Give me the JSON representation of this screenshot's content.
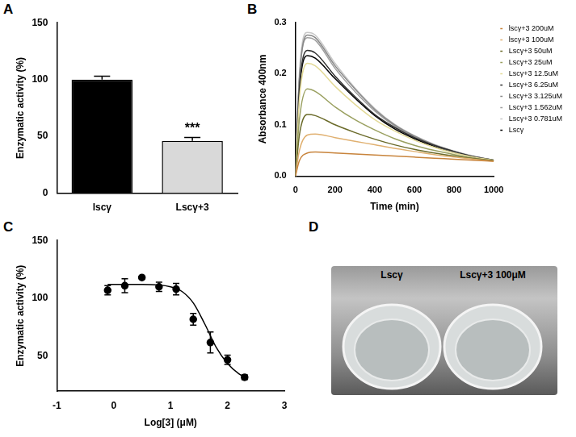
{
  "chart_data": [
    {
      "panel": "A",
      "type": "bar",
      "categories": [
        "lscγ",
        "Lscγ+3"
      ],
      "values": [
        100,
        46
      ],
      "errors": [
        3,
        3
      ],
      "colors": [
        "#000000",
        "#d9d9d9"
      ],
      "ylabel": "Enzymatic activity (%)",
      "ylim": [
        0,
        150
      ],
      "yticks": [
        0,
        50,
        100,
        150
      ],
      "grid": false,
      "annotations": [
        {
          "text": "***",
          "category": "Lscγ+3"
        }
      ]
    },
    {
      "panel": "B",
      "type": "line",
      "xlabel": "Time (min)",
      "ylabel": "Absorbance 400nm",
      "x": [
        0,
        20,
        60,
        100,
        200,
        300,
        400,
        500,
        600,
        700,
        800,
        900,
        1000
      ],
      "xlim": [
        0,
        1000
      ],
      "xticks": [
        0,
        200,
        400,
        600,
        800,
        1000
      ],
      "ylim": [
        0,
        0.3
      ],
      "yticks": [
        {
          "value": 0,
          "label": "0.0"
        },
        {
          "value": 0.1,
          "label": "0.1"
        },
        {
          "value": 0.2,
          "label": "0.2"
        },
        {
          "value": 0.3,
          "label": "0.3"
        }
      ],
      "grid": false,
      "legend": "right",
      "series": [
        {
          "name": "lscγ+3 200uM",
          "color": "#c8843c",
          "values": [
            0,
            0.03,
            0.045,
            0.047,
            0.045,
            0.043,
            0.041,
            0.039,
            0.037,
            0.035,
            0.033,
            0.031,
            0.029
          ]
        },
        {
          "name": "lscγ+3 100uM",
          "color": "#e0b070",
          "values": [
            0,
            0.05,
            0.08,
            0.082,
            0.075,
            0.068,
            0.061,
            0.054,
            0.048,
            0.042,
            0.037,
            0.033,
            0.029
          ]
        },
        {
          "name": "Lscγ+3 50uM",
          "color": "#6b6b2a",
          "values": [
            0,
            0.08,
            0.12,
            0.118,
            0.1,
            0.085,
            0.072,
            0.061,
            0.052,
            0.045,
            0.039,
            0.034,
            0.03
          ]
        },
        {
          "name": "Lscγ+3 25uM",
          "color": "#9aa060",
          "values": [
            0,
            0.11,
            0.17,
            0.165,
            0.135,
            0.11,
            0.09,
            0.073,
            0.06,
            0.05,
            0.042,
            0.035,
            0.03
          ]
        },
        {
          "name": "Lscγ+3 12.5uM",
          "color": "#e3da98",
          "values": [
            0,
            0.15,
            0.22,
            0.215,
            0.175,
            0.14,
            0.11,
            0.088,
            0.07,
            0.056,
            0.045,
            0.037,
            0.031
          ]
        },
        {
          "name": "Lscγ+3 6.25uM",
          "color": "#303030",
          "values": [
            0,
            0.17,
            0.245,
            0.24,
            0.195,
            0.155,
            0.12,
            0.095,
            0.075,
            0.06,
            0.048,
            0.038,
            0.031
          ]
        },
        {
          "name": "Lscγ+3 3.125uM",
          "color": "#888888",
          "values": [
            0,
            0.19,
            0.275,
            0.27,
            0.215,
            0.17,
            0.13,
            0.1,
            0.078,
            0.061,
            0.048,
            0.038,
            0.031
          ]
        },
        {
          "name": "Lscγ+3 1.562uM",
          "color": "#a0a0a0",
          "values": [
            0,
            0.19,
            0.27,
            0.265,
            0.21,
            0.165,
            0.127,
            0.098,
            0.077,
            0.06,
            0.047,
            0.038,
            0.031
          ]
        },
        {
          "name": "Lscγ+3 0.781uM",
          "color": "#c8c8c8",
          "values": [
            0,
            0.2,
            0.28,
            0.275,
            0.22,
            0.172,
            0.132,
            0.101,
            0.079,
            0.062,
            0.049,
            0.039,
            0.031
          ]
        },
        {
          "name": "Lscγ",
          "color": "#000000",
          "values": [
            0,
            0.165,
            0.235,
            0.23,
            0.19,
            0.152,
            0.118,
            0.092,
            0.073,
            0.058,
            0.046,
            0.037,
            0.03
          ]
        }
      ]
    },
    {
      "panel": "C",
      "type": "scatter",
      "xlabel": "Log[3] (μM)",
      "ylabel": "Enzymatic activity (%)",
      "xlim": [
        -1,
        3
      ],
      "xticks": [
        -1,
        0,
        1,
        2,
        3
      ],
      "ylim": [
        20,
        150
      ],
      "yticks": [
        50,
        100,
        150
      ],
      "grid": false,
      "series": [
        {
          "type": "scatter",
          "color": "#000000",
          "x": [
            -0.107,
            0.194,
            0.495,
            0.796,
            1.097,
            1.398,
            1.699,
            2.0,
            2.301
          ],
          "values": [
            107,
            111,
            118,
            110,
            108,
            82,
            62,
            47,
            32
          ],
          "errors": [
            4,
            6,
            1,
            4,
            5,
            5,
            9,
            4,
            2
          ]
        },
        {
          "type": "line",
          "color": "#000000",
          "x": [
            -0.107,
            0.5,
            1.0,
            1.2,
            1.4,
            1.6,
            1.8,
            2.0,
            2.2,
            2.301
          ],
          "values": [
            112,
            112,
            110,
            106,
            96,
            78,
            58,
            44,
            35,
            32
          ]
        }
      ]
    }
  ],
  "panel_d": {
    "panel": "D",
    "labels": [
      "Lscγ",
      "Lscγ+3 100μM"
    ]
  }
}
